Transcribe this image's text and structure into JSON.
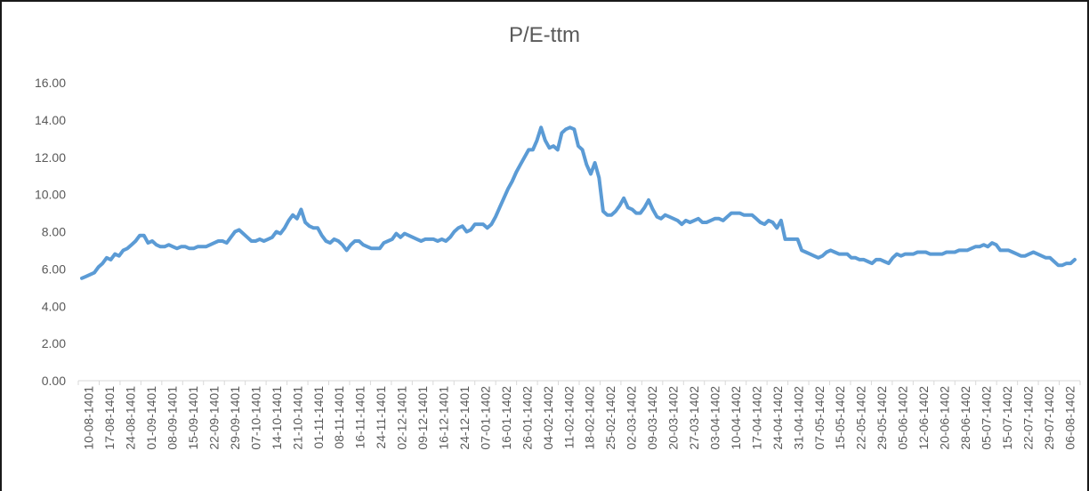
{
  "chart_data": {
    "type": "line",
    "title": "P/E-ttm",
    "xlabel": "",
    "ylabel": "",
    "ylim": [
      0,
      16
    ],
    "y_ticks": [
      "0.00",
      "2.00",
      "4.00",
      "6.00",
      "8.00",
      "10.00",
      "12.00",
      "14.00",
      "16.00"
    ],
    "x_tick_labels": [
      "10-08-1401",
      "17-08-1401",
      "24-08-1401",
      "01-09-1401",
      "08-09-1401",
      "15-09-1401",
      "22-09-1401",
      "29-09-1401",
      "07-10-1401",
      "14-10-1401",
      "21-10-1401",
      "01-11-1401",
      "08-11-1401",
      "16-11-1401",
      "24-11-1401",
      "02-12-1401",
      "09-12-1401",
      "16-12-1401",
      "24-12-1401",
      "07-01-1402",
      "16-01-1402",
      "26-01-1402",
      "04-02-1402",
      "11-02-1402",
      "18-02-1402",
      "25-02-1402",
      "02-03-1402",
      "09-03-1402",
      "20-03-1402",
      "27-03-1402",
      "03-04-1402",
      "10-04-1402",
      "17-04-1402",
      "24-04-1402",
      "31-04-1402",
      "07-05-1402",
      "15-05-1402",
      "22-05-1402",
      "29-05-1402",
      "05-06-1402",
      "12-06-1402",
      "20-06-1402",
      "28-06-1402",
      "05-07-1402",
      "15-07-1402",
      "22-07-1402",
      "29-07-1402",
      "06-08-1402"
    ],
    "grid": false,
    "legend": "none",
    "line_color": "#5b9bd5",
    "series": [
      {
        "values": [
          5.5,
          5.6,
          5.7,
          5.8,
          6.1,
          6.3,
          6.6,
          6.5,
          6.8,
          6.7,
          7.0,
          7.1,
          7.3,
          7.5,
          7.8,
          7.8,
          7.4,
          7.5,
          7.3,
          7.2,
          7.2,
          7.3,
          7.2,
          7.1,
          7.2,
          7.2,
          7.1,
          7.1,
          7.2,
          7.2,
          7.2,
          7.3,
          7.4,
          7.5,
          7.5,
          7.4,
          7.7,
          8.0,
          8.1,
          7.9,
          7.7,
          7.5,
          7.5,
          7.6,
          7.5,
          7.6,
          7.7,
          8.0,
          7.9,
          8.2,
          8.6,
          8.9,
          8.7,
          9.2,
          8.5,
          8.3,
          8.2,
          8.2,
          7.8,
          7.5,
          7.4,
          7.6,
          7.5,
          7.3,
          7.0,
          7.3,
          7.5,
          7.5,
          7.3,
          7.2,
          7.1,
          7.1,
          7.1,
          7.4,
          7.5,
          7.6,
          7.9,
          7.7,
          7.9,
          7.8,
          7.7,
          7.6,
          7.5,
          7.6,
          7.6,
          7.6,
          7.5,
          7.6,
          7.5,
          7.7,
          8.0,
          8.2,
          8.3,
          8.0,
          8.1,
          8.4,
          8.4,
          8.4,
          8.2,
          8.4,
          8.8,
          9.3,
          9.8,
          10.3,
          10.7,
          11.2,
          11.6,
          12.0,
          12.4,
          12.4,
          12.9,
          13.6,
          12.9,
          12.5,
          12.6,
          12.4,
          13.3,
          13.5,
          13.6,
          13.5,
          12.6,
          12.4,
          11.6,
          11.1,
          11.7,
          10.9,
          9.1,
          8.9,
          8.9,
          9.1,
          9.4,
          9.8,
          9.3,
          9.2,
          9.0,
          9.0,
          9.3,
          9.7,
          9.2,
          8.8,
          8.7,
          8.9,
          8.8,
          8.7,
          8.6,
          8.4,
          8.6,
          8.5,
          8.6,
          8.7,
          8.5,
          8.5,
          8.6,
          8.7,
          8.7,
          8.6,
          8.8,
          9.0,
          9.0,
          9.0,
          8.9,
          8.9,
          8.9,
          8.7,
          8.5,
          8.4,
          8.6,
          8.5,
          8.2,
          8.6,
          7.6,
          7.6,
          7.6,
          7.6,
          7.0,
          6.9,
          6.8,
          6.7,
          6.6,
          6.7,
          6.9,
          7.0,
          6.9,
          6.8,
          6.8,
          6.8,
          6.6,
          6.6,
          6.5,
          6.5,
          6.4,
          6.3,
          6.5,
          6.5,
          6.4,
          6.3,
          6.6,
          6.8,
          6.7,
          6.8,
          6.8,
          6.8,
          6.9,
          6.9,
          6.9,
          6.8,
          6.8,
          6.8,
          6.8,
          6.9,
          6.9,
          6.9,
          7.0,
          7.0,
          7.0,
          7.1,
          7.2,
          7.2,
          7.3,
          7.2,
          7.4,
          7.3,
          7.0,
          7.0,
          7.0,
          6.9,
          6.8,
          6.7,
          6.7,
          6.8,
          6.9,
          6.8,
          6.7,
          6.6,
          6.6,
          6.4,
          6.2,
          6.2,
          6.3,
          6.3,
          6.5
        ]
      }
    ]
  }
}
